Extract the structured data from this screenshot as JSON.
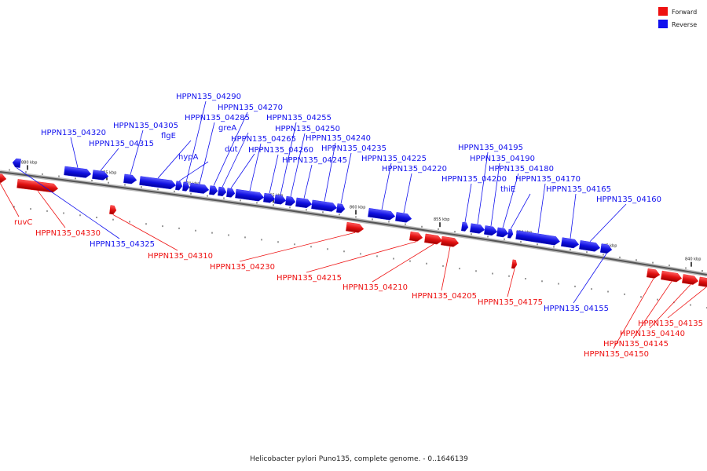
{
  "legend": {
    "forward_label": "Forward",
    "reverse_label": "Reverse",
    "forward_color": "#ee1111",
    "reverse_color": "#1111ee"
  },
  "caption": "Helicobacter pylori Puno135, complete genome. - 0..1646139",
  "ticks": [
    {
      "label": "880 kbp",
      "icon": "major-tick"
    },
    {
      "label": "875 kbp",
      "icon": "major-tick"
    },
    {
      "label": "870 kbp",
      "icon": "major-tick"
    },
    {
      "label": "865 kbp",
      "icon": "major-tick"
    },
    {
      "label": "860 kbp",
      "icon": "major-tick"
    },
    {
      "label": "855 kbp",
      "icon": "major-tick"
    },
    {
      "label": "850 kbp",
      "icon": "major-tick"
    },
    {
      "label": "845 kbp",
      "icon": "major-tick"
    },
    {
      "label": "840 kbp",
      "icon": "major-tick"
    }
  ],
  "genes": [
    {
      "label": "ruvC",
      "strand": "forward"
    },
    {
      "label": "HPPN135_04330",
      "strand": "forward"
    },
    {
      "label": "HPPN135_04325",
      "strand": "reverse"
    },
    {
      "label": "HPPN135_04320",
      "strand": "reverse"
    },
    {
      "label": "HPPN135_04315",
      "strand": "reverse"
    },
    {
      "label": "HPPN135_04310",
      "strand": "forward"
    },
    {
      "label": "HPPN135_04305",
      "strand": "reverse"
    },
    {
      "label": "flgE",
      "strand": "reverse"
    },
    {
      "label": "hypA",
      "strand": "reverse"
    },
    {
      "label": "HPPN135_04290",
      "strand": "reverse"
    },
    {
      "label": "HPPN135_04285",
      "strand": "reverse"
    },
    {
      "label": "HPPN135_04270",
      "strand": "reverse"
    },
    {
      "label": "greA",
      "strand": "reverse"
    },
    {
      "label": "dut",
      "strand": "reverse"
    },
    {
      "label": "HPPN135_04265",
      "strand": "reverse"
    },
    {
      "label": "HPPN135_04260",
      "strand": "reverse"
    },
    {
      "label": "HPPN135_04255",
      "strand": "reverse"
    },
    {
      "label": "HPPN135_04250",
      "strand": "reverse"
    },
    {
      "label": "HPPN135_04245",
      "strand": "reverse"
    },
    {
      "label": "HPPN135_04240",
      "strand": "reverse"
    },
    {
      "label": "HPPN135_04235",
      "strand": "reverse"
    },
    {
      "label": "HPPN135_04230",
      "strand": "forward"
    },
    {
      "label": "HPPN135_04225",
      "strand": "reverse"
    },
    {
      "label": "HPPN135_04220",
      "strand": "reverse"
    },
    {
      "label": "HPPN135_04215",
      "strand": "forward"
    },
    {
      "label": "HPPN135_04210",
      "strand": "forward"
    },
    {
      "label": "HPPN135_04205",
      "strand": "forward"
    },
    {
      "label": "HPPN135_04200",
      "strand": "reverse"
    },
    {
      "label": "HPPN135_04195",
      "strand": "reverse"
    },
    {
      "label": "HPPN135_04190",
      "strand": "reverse"
    },
    {
      "label": "HPPN135_04180",
      "strand": "reverse"
    },
    {
      "label": "thiE",
      "strand": "reverse"
    },
    {
      "label": "HPPN135_04175",
      "strand": "forward"
    },
    {
      "label": "HPPN135_04170",
      "strand": "reverse"
    },
    {
      "label": "HPPN135_04165",
      "strand": "reverse"
    },
    {
      "label": "HPPN135_04160",
      "strand": "reverse"
    },
    {
      "label": "HPPN135_04155",
      "strand": "reverse"
    },
    {
      "label": "HPPN135_04150",
      "strand": "forward"
    },
    {
      "label": "HPPN135_04145",
      "strand": "forward"
    },
    {
      "label": "HPPN135_04140",
      "strand": "forward"
    },
    {
      "label": "HPPN135_04135",
      "strand": "forward"
    }
  ]
}
